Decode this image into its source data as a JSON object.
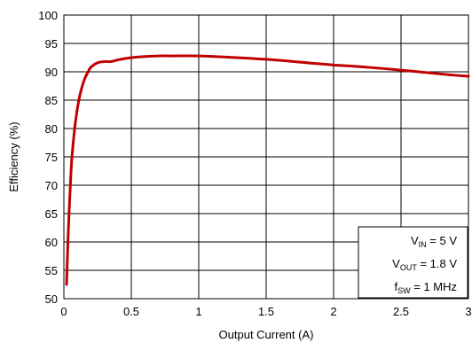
{
  "chart_data": {
    "type": "line",
    "title": "",
    "xlabel": "Output Current (A)",
    "ylabel": "Efficiency (%)",
    "xlim": [
      0,
      3
    ],
    "ylim": [
      50,
      100
    ],
    "x_ticks": [
      0,
      0.5,
      1,
      1.5,
      2,
      2.5,
      3
    ],
    "x_tick_labels": [
      "0",
      "0.5",
      "1",
      "1.5",
      "2",
      "2.5",
      "3"
    ],
    "y_ticks": [
      50,
      55,
      60,
      65,
      70,
      75,
      80,
      85,
      90,
      95,
      100
    ],
    "y_tick_labels": [
      "50",
      "55",
      "60",
      "65",
      "70",
      "75",
      "80",
      "85",
      "90",
      "95",
      "100"
    ],
    "grid": true,
    "line_color": "#c00000",
    "series": [
      {
        "x": [
          0.02,
          0.03,
          0.04,
          0.05,
          0.06,
          0.08,
          0.1,
          0.12,
          0.15,
          0.18,
          0.2,
          0.25,
          0.3,
          0.35,
          0.4,
          0.5,
          0.6,
          0.7,
          0.8,
          1.0,
          1.2,
          1.5,
          1.8,
          2.0,
          2.2,
          2.5,
          2.8,
          3.0
        ],
        "y": [
          52.5,
          60,
          66,
          71,
          75,
          80,
          83.5,
          86,
          88.5,
          90,
          90.8,
          91.6,
          91.8,
          91.8,
          92.1,
          92.5,
          92.7,
          92.8,
          92.8,
          92.8,
          92.6,
          92.2,
          91.6,
          91.2,
          90.9,
          90.3,
          89.6,
          89.2
        ]
      }
    ],
    "annotation": {
      "line1": {
        "main": "V",
        "sub": "IN",
        "rest": " = 5 V"
      },
      "line2": {
        "main": "V",
        "sub": "OUT",
        "rest": " = 1.8 V"
      },
      "line3": {
        "main": "f",
        "sub": "SW",
        "rest": " = 1 MHz"
      },
      "placement": "bottom-right"
    }
  }
}
